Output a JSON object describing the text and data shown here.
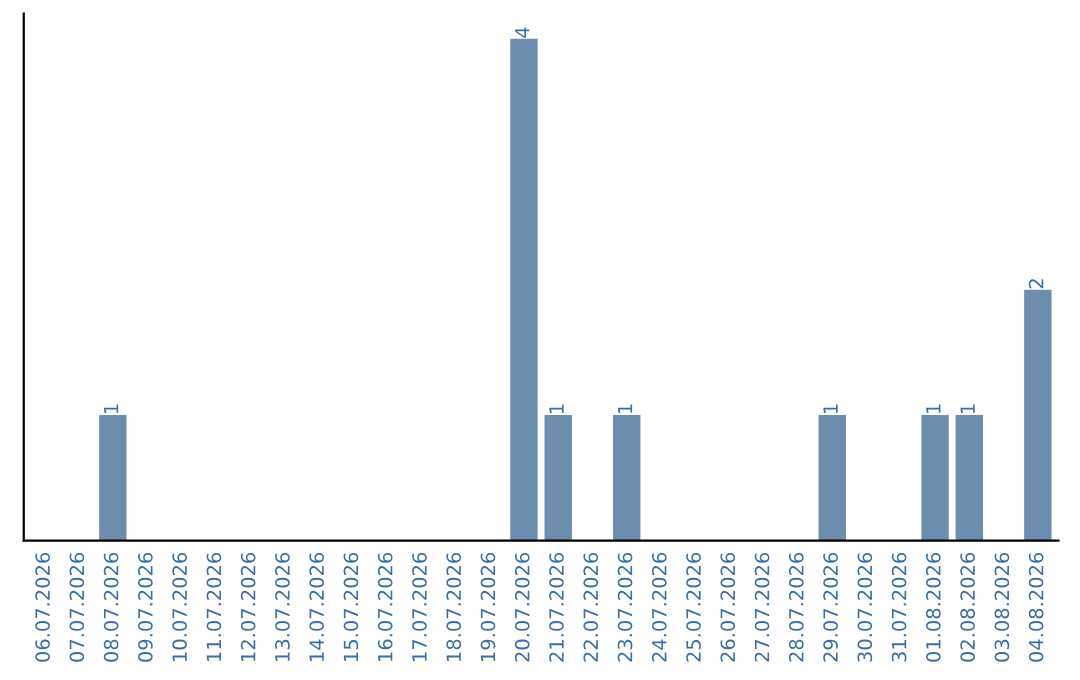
{
  "chart_data": {
    "type": "bar",
    "categories": [
      "06.07.2026",
      "07.07.2026",
      "08.07.2026",
      "09.07.2026",
      "10.07.2026",
      "11.07.2026",
      "12.07.2026",
      "13.07.2026",
      "14.07.2026",
      "15.07.2026",
      "16.07.2026",
      "17.07.2026",
      "18.07.2026",
      "19.07.2026",
      "20.07.2026",
      "21.07.2026",
      "22.07.2026",
      "23.07.2026",
      "24.07.2026",
      "25.07.2026",
      "26.07.2026",
      "27.07.2026",
      "28.07.2026",
      "29.07.2026",
      "30.07.2026",
      "31.07.2026",
      "01.08.2026",
      "02.08.2026",
      "03.08.2026",
      "04.08.2026"
    ],
    "values": [
      0,
      0,
      1,
      0,
      0,
      0,
      0,
      0,
      0,
      0,
      0,
      0,
      0,
      0,
      4,
      1,
      0,
      1,
      0,
      0,
      0,
      0,
      0,
      1,
      0,
      0,
      1,
      1,
      0,
      2
    ],
    "value_labels": [
      null,
      null,
      "1",
      null,
      null,
      null,
      null,
      null,
      null,
      null,
      null,
      null,
      null,
      null,
      "4",
      "1",
      null,
      "1",
      null,
      null,
      null,
      null,
      null,
      "1",
      null,
      null,
      "1",
      "1",
      null,
      "2"
    ],
    "color": "#6d8daf",
    "grid": false,
    "legend": false
  }
}
